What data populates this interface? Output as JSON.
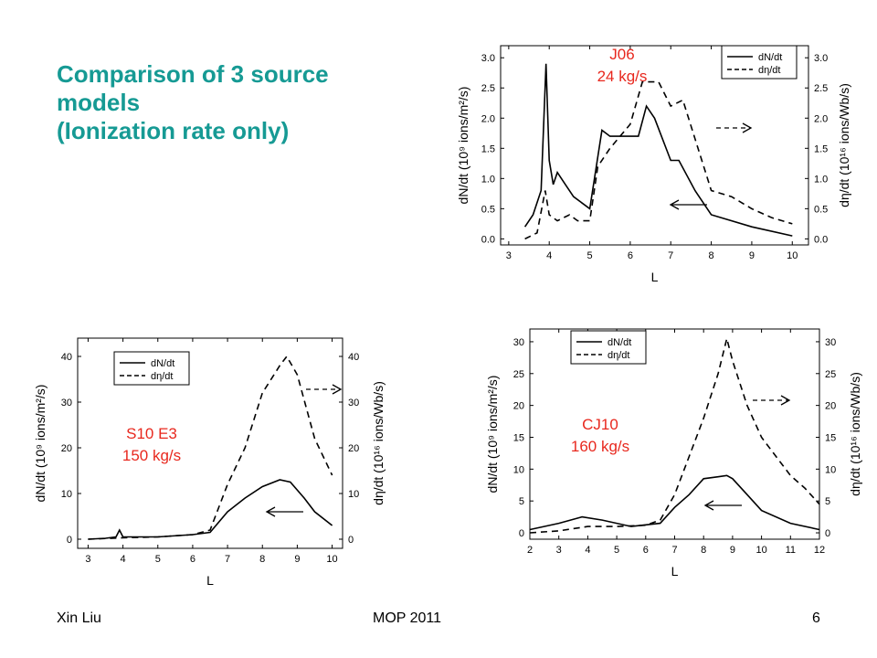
{
  "slide": {
    "title_lines": [
      "Comparison of 3 source",
      "models",
      "(Ionization rate only)"
    ],
    "footer_left": "Xin Liu",
    "footer_center": "MOP 2011",
    "footer_right": "6"
  },
  "colors": {
    "title": "#169a94",
    "annotation": "#e8281e",
    "lines": "#000000"
  },
  "chart_data": [
    {
      "type": "line",
      "name_label": [
        "J06",
        "24 kg/s"
      ],
      "xlabel": "L",
      "ylabel": "dN/dt (10⁹ ions/m²/s)",
      "y2label": "dη/dt (10¹⁶ ions/Wb/s)",
      "xlim": [
        2.8,
        10.4
      ],
      "ylim": [
        -0.1,
        3.2
      ],
      "xticks": [
        "3",
        "4",
        "5",
        "6",
        "7",
        "8",
        "9",
        "10"
      ],
      "yticks": [
        "0.0",
        "0.5",
        "1.0",
        "1.5",
        "2.0",
        "2.5",
        "3.0"
      ],
      "y2ticks": [
        "0.0",
        "0.5",
        "1.0",
        "1.5",
        "2.0",
        "2.5",
        "3.0"
      ],
      "legend": "top-right",
      "series": [
        {
          "name": "dN/dt",
          "style": "solid",
          "points": [
            [
              3.4,
              0.2
            ],
            [
              3.6,
              0.4
            ],
            [
              3.8,
              0.8
            ],
            [
              3.92,
              2.9
            ],
            [
              4.0,
              1.3
            ],
            [
              4.1,
              0.9
            ],
            [
              4.2,
              1.1
            ],
            [
              4.4,
              0.9
            ],
            [
              4.6,
              0.7
            ],
            [
              4.8,
              0.6
            ],
            [
              5.0,
              0.5
            ],
            [
              5.3,
              1.8
            ],
            [
              5.5,
              1.7
            ],
            [
              6.2,
              1.7
            ],
            [
              6.4,
              2.2
            ],
            [
              6.6,
              2.0
            ],
            [
              7.0,
              1.3
            ],
            [
              7.2,
              1.3
            ],
            [
              7.6,
              0.8
            ],
            [
              8.0,
              0.4
            ],
            [
              9.0,
              0.2
            ],
            [
              10.0,
              0.05
            ]
          ]
        },
        {
          "name": "dη/dt",
          "style": "dashed",
          "points": [
            [
              3.4,
              0.0
            ],
            [
              3.7,
              0.1
            ],
            [
              3.9,
              0.8
            ],
            [
              4.0,
              0.4
            ],
            [
              4.2,
              0.3
            ],
            [
              4.5,
              0.4
            ],
            [
              4.7,
              0.3
            ],
            [
              5.0,
              0.3
            ],
            [
              5.2,
              1.2
            ],
            [
              5.5,
              1.5
            ],
            [
              6.0,
              1.9
            ],
            [
              6.3,
              2.6
            ],
            [
              6.7,
              2.6
            ],
            [
              7.0,
              2.2
            ],
            [
              7.3,
              2.3
            ],
            [
              8.0,
              0.8
            ],
            [
              8.5,
              0.7
            ],
            [
              9.0,
              0.5
            ],
            [
              9.5,
              0.35
            ],
            [
              10.0,
              0.25
            ]
          ]
        }
      ]
    },
    {
      "type": "line",
      "name_label": [
        "S10 E3",
        "150 kg/s"
      ],
      "xlabel": "L",
      "ylabel": "dN/dt (10⁹ ions/m²/s)",
      "y2label": "dη/dt (10¹⁶ ions/Wb/s)",
      "xlim": [
        2.7,
        10.3
      ],
      "ylim": [
        -2,
        44
      ],
      "xticks": [
        "3",
        "4",
        "5",
        "6",
        "7",
        "8",
        "9",
        "10"
      ],
      "yticks": [
        "0",
        "10",
        "20",
        "30",
        "40"
      ],
      "y2ticks": [
        "0",
        "10",
        "20",
        "30",
        "40"
      ],
      "legend": "top-left",
      "series": [
        {
          "name": "dN/dt",
          "style": "solid",
          "points": [
            [
              3.0,
              0
            ],
            [
              3.5,
              0.2
            ],
            [
              3.8,
              0.5
            ],
            [
              3.9,
              2.0
            ],
            [
              4.0,
              0.5
            ],
            [
              5.0,
              0.5
            ],
            [
              6.0,
              1.0
            ],
            [
              6.5,
              1.5
            ],
            [
              7.0,
              6.0
            ],
            [
              7.5,
              9.0
            ],
            [
              8.0,
              11.5
            ],
            [
              8.5,
              13.0
            ],
            [
              8.8,
              12.5
            ],
            [
              9.2,
              9.0
            ],
            [
              9.5,
              6.0
            ],
            [
              10.0,
              3.0
            ]
          ]
        },
        {
          "name": "dη/dt",
          "style": "dashed",
          "points": [
            [
              3.0,
              0
            ],
            [
              4.0,
              0.3
            ],
            [
              5.0,
              0.5
            ],
            [
              6.0,
              1.0
            ],
            [
              6.5,
              2.0
            ],
            [
              7.0,
              12.0
            ],
            [
              7.5,
              20.0
            ],
            [
              8.0,
              32.0
            ],
            [
              8.5,
              38.0
            ],
            [
              8.7,
              40.0
            ],
            [
              9.0,
              36.0
            ],
            [
              9.5,
              22.0
            ],
            [
              10.0,
              14.0
            ]
          ]
        }
      ]
    },
    {
      "type": "line",
      "name_label": [
        "CJ10",
        "160 kg/s"
      ],
      "xlabel": "L",
      "ylabel": "dN/dt (10⁹ ions/m²/s)",
      "y2label": "dη/dt (10¹⁶ ions/Wb/s)",
      "xlim": [
        2.0,
        12.0
      ],
      "ylim": [
        -1,
        32
      ],
      "xticks": [
        "2",
        "3",
        "4",
        "5",
        "6",
        "7",
        "8",
        "9",
        "10",
        "11",
        "12"
      ],
      "yticks": [
        "0",
        "5",
        "10",
        "15",
        "20",
        "25",
        "30"
      ],
      "y2ticks": [
        "0",
        "5",
        "10",
        "15",
        "20",
        "25",
        "30"
      ],
      "legend": "top-left",
      "series": [
        {
          "name": "dN/dt",
          "style": "solid",
          "points": [
            [
              2.0,
              0.5
            ],
            [
              3.0,
              1.5
            ],
            [
              3.8,
              2.5
            ],
            [
              4.5,
              2.0
            ],
            [
              5.5,
              1.0
            ],
            [
              6.5,
              1.5
            ],
            [
              7.0,
              4.0
            ],
            [
              7.5,
              6.0
            ],
            [
              8.0,
              8.5
            ],
            [
              8.5,
              8.8
            ],
            [
              8.8,
              9.0
            ],
            [
              9.0,
              8.5
            ],
            [
              9.5,
              6.0
            ],
            [
              10.0,
              3.5
            ],
            [
              11.0,
              1.5
            ],
            [
              12.0,
              0.5
            ]
          ]
        },
        {
          "name": "dη/dt",
          "style": "dashed",
          "points": [
            [
              2.0,
              0
            ],
            [
              3.0,
              0.3
            ],
            [
              4.0,
              1.0
            ],
            [
              5.0,
              1.0
            ],
            [
              6.0,
              1.2
            ],
            [
              6.5,
              2.0
            ],
            [
              7.0,
              6.0
            ],
            [
              7.5,
              12.0
            ],
            [
              8.0,
              18.0
            ],
            [
              8.5,
              25.0
            ],
            [
              8.8,
              30.5
            ],
            [
              9.0,
              27.0
            ],
            [
              9.5,
              20.0
            ],
            [
              10.0,
              15.0
            ],
            [
              10.5,
              12.0
            ],
            [
              11.0,
              9.0
            ],
            [
              11.5,
              7.0
            ],
            [
              12.0,
              4.5
            ]
          ]
        }
      ]
    }
  ]
}
